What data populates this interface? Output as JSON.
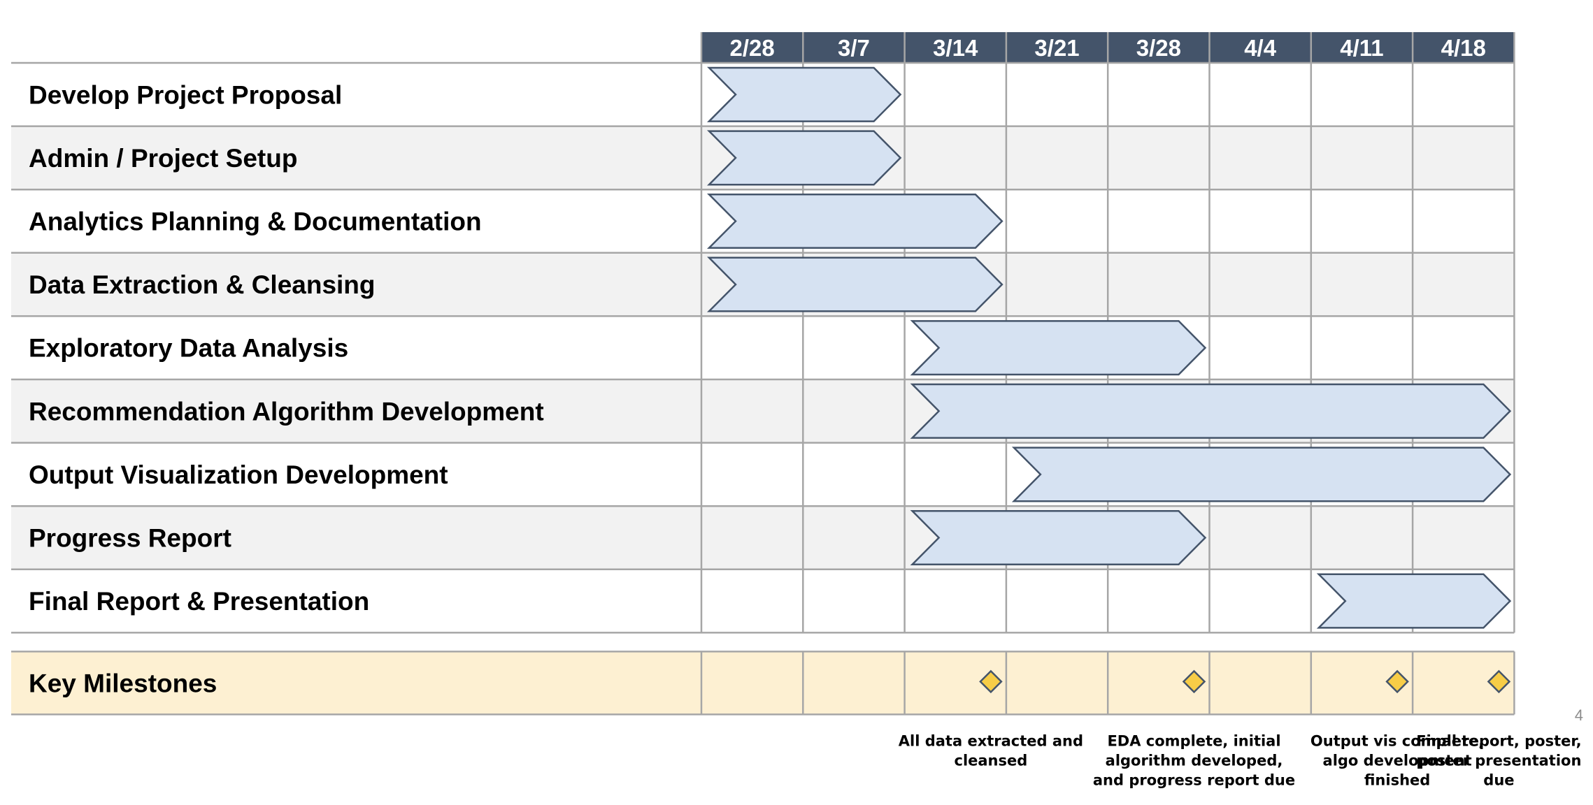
{
  "page_number": "4",
  "colors": {
    "header_bg": "#44546a",
    "header_text": "#ffffff",
    "bar_fill": "#d6e2f2",
    "bar_stroke": "#44546a",
    "row_alt": "#f2f2f2",
    "milestone_row": "#fdf0d2",
    "diamond_fill": "#f7cd47",
    "grid": "#a6a6a6"
  },
  "chart_data": {
    "type": "gantt",
    "title": "",
    "weeks": [
      "2/28",
      "3/7",
      "3/14",
      "3/21",
      "3/28",
      "4/4",
      "4/11",
      "4/18"
    ],
    "tasks": [
      {
        "name": "Develop Project Proposal",
        "start": "2/28",
        "end": "3/14"
      },
      {
        "name": "Admin / Project Setup",
        "start": "2/28",
        "end": "3/14"
      },
      {
        "name": "Analytics Planning & Documentation",
        "start": "2/28",
        "end": "3/21"
      },
      {
        "name": "Data Extraction & Cleansing",
        "start": "2/28",
        "end": "3/21"
      },
      {
        "name": "Exploratory Data Analysis",
        "start": "3/14",
        "end": "4/4"
      },
      {
        "name": "Recommendation Algorithm Development",
        "start": "3/14",
        "end": "4/25"
      },
      {
        "name": "Output Visualization Development",
        "start": "3/21",
        "end": "4/25"
      },
      {
        "name": "Progress Report",
        "start": "3/14",
        "end": "4/4"
      },
      {
        "name": "Final Report & Presentation",
        "start": "4/11",
        "end": "4/25"
      }
    ],
    "milestones_label": "Key Milestones",
    "milestones": [
      {
        "date": "3/21",
        "caption_lines": [
          "All data extracted and",
          "cleansed"
        ]
      },
      {
        "date": "4/4",
        "caption_lines": [
          "EDA complete, initial",
          "algorithm developed,",
          "and progress report due"
        ]
      },
      {
        "date": "4/18",
        "caption_lines": [
          "Output vis complete,",
          "algo development",
          "finished"
        ]
      },
      {
        "date": "4/25",
        "caption_lines": [
          "Final report, poster,",
          "poster presentation",
          "due"
        ]
      }
    ]
  }
}
